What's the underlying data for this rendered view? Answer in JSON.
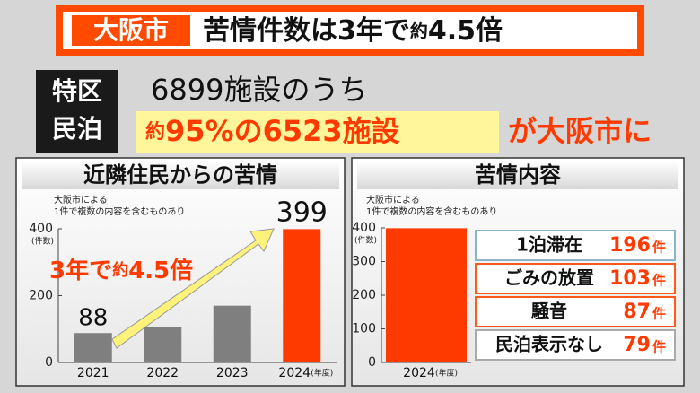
{
  "header": {
    "city": "大阪市",
    "title": [
      "苦情件数は3年で",
      "約",
      "4.5倍"
    ]
  },
  "summary": {
    "badge": [
      "特区",
      "民泊"
    ],
    "line1": "6899施設のうち",
    "highlight": [
      "約",
      "95%の6523施設"
    ],
    "tail": "が大阪市に"
  },
  "chart_data": [
    {
      "type": "bar",
      "title": "近隣住民からの苦情",
      "note": [
        "大阪市による",
        "1件で複数の内容を含むものあり"
      ],
      "y_unit": "(件数)",
      "x_unit": "(年度)",
      "categories": [
        "2021",
        "2022",
        "2023",
        "2024"
      ],
      "values": [
        88,
        105,
        170,
        399
      ],
      "value_labels": [
        "88",
        null,
        null,
        "399"
      ],
      "colors": [
        "#7f7f7f",
        "#7f7f7f",
        "#7f7f7f",
        "#ff3a00"
      ],
      "ylim": [
        0,
        400
      ],
      "yticks": [
        0,
        200,
        400
      ],
      "grid": false,
      "annotation": [
        "3年で",
        "約",
        "4.5倍"
      ]
    },
    {
      "type": "bar",
      "title": "苦情内容",
      "note": [
        "大阪市による",
        "1件で複数の内容を含むものあり"
      ],
      "y_unit": "(件数)",
      "x_unit": "(年度)",
      "categories": [
        "2024"
      ],
      "values": [
        399
      ],
      "colors": [
        "#ff3a00"
      ],
      "ylim": [
        0,
        400
      ],
      "yticks": [
        0,
        100,
        200,
        300,
        400
      ],
      "grid": false,
      "breakdown": {
        "unit": "件",
        "items": [
          {
            "name": "1泊滞在",
            "value": 196
          },
          {
            "name": "ごみの放置",
            "value": 103
          },
          {
            "name": "騒音",
            "value": 87
          },
          {
            "name": "民泊表示なし",
            "value": 79
          }
        ]
      }
    }
  ]
}
